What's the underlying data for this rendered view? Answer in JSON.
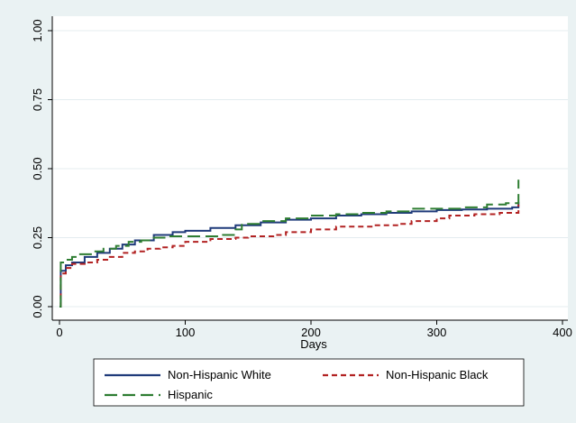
{
  "chart_data": {
    "type": "line",
    "title": "",
    "xlabel": "Days",
    "ylabel": "",
    "xlim": [
      0,
      400
    ],
    "ylim": [
      0,
      1
    ],
    "x_ticks": [
      "0",
      "100",
      "200",
      "300",
      "400"
    ],
    "y_ticks": [
      "0.00",
      "0.25",
      "0.50",
      "0.75",
      "1.00"
    ],
    "grid": true,
    "legend_position": "bottom",
    "series": [
      {
        "name": "Non-Hispanic White",
        "color": "#1f3a7a",
        "dash": "solid",
        "points": [
          [
            0,
            0
          ],
          [
            1,
            0.13
          ],
          [
            5,
            0.15
          ],
          [
            10,
            0.16
          ],
          [
            20,
            0.18
          ],
          [
            30,
            0.195
          ],
          [
            40,
            0.21
          ],
          [
            50,
            0.225
          ],
          [
            60,
            0.24
          ],
          [
            75,
            0.26
          ],
          [
            90,
            0.27
          ],
          [
            100,
            0.275
          ],
          [
            120,
            0.285
          ],
          [
            140,
            0.295
          ],
          [
            160,
            0.305
          ],
          [
            180,
            0.315
          ],
          [
            200,
            0.32
          ],
          [
            220,
            0.33
          ],
          [
            240,
            0.335
          ],
          [
            260,
            0.34
          ],
          [
            280,
            0.345
          ],
          [
            300,
            0.35
          ],
          [
            320,
            0.352
          ],
          [
            340,
            0.355
          ],
          [
            360,
            0.36
          ],
          [
            365,
            0.36
          ],
          [
            365,
            0.38
          ]
        ]
      },
      {
        "name": "Non-Hispanic Black",
        "color": "#b22222",
        "dash": "short",
        "points": [
          [
            0,
            0
          ],
          [
            1,
            0.12
          ],
          [
            5,
            0.14
          ],
          [
            10,
            0.155
          ],
          [
            20,
            0.16
          ],
          [
            30,
            0.17
          ],
          [
            40,
            0.18
          ],
          [
            50,
            0.195
          ],
          [
            60,
            0.2
          ],
          [
            70,
            0.21
          ],
          [
            80,
            0.215
          ],
          [
            90,
            0.22
          ],
          [
            100,
            0.235
          ],
          [
            120,
            0.245
          ],
          [
            140,
            0.25
          ],
          [
            150,
            0.255
          ],
          [
            170,
            0.26
          ],
          [
            180,
            0.27
          ],
          [
            200,
            0.28
          ],
          [
            220,
            0.29
          ],
          [
            250,
            0.295
          ],
          [
            270,
            0.3
          ],
          [
            280,
            0.31
          ],
          [
            300,
            0.32
          ],
          [
            310,
            0.33
          ],
          [
            330,
            0.335
          ],
          [
            350,
            0.34
          ],
          [
            365,
            0.34
          ],
          [
            365,
            0.37
          ]
        ]
      },
      {
        "name": "Hispanic",
        "color": "#2e7d32",
        "dash": "long",
        "points": [
          [
            0,
            0
          ],
          [
            1,
            0.16
          ],
          [
            5,
            0.17
          ],
          [
            10,
            0.18
          ],
          [
            15,
            0.19
          ],
          [
            25,
            0.2
          ],
          [
            35,
            0.21
          ],
          [
            45,
            0.22
          ],
          [
            55,
            0.235
          ],
          [
            65,
            0.24
          ],
          [
            75,
            0.25
          ],
          [
            85,
            0.255
          ],
          [
            100,
            0.255
          ],
          [
            130,
            0.26
          ],
          [
            140,
            0.28
          ],
          [
            145,
            0.3
          ],
          [
            160,
            0.31
          ],
          [
            180,
            0.32
          ],
          [
            200,
            0.33
          ],
          [
            220,
            0.335
          ],
          [
            240,
            0.34
          ],
          [
            260,
            0.345
          ],
          [
            280,
            0.355
          ],
          [
            300,
            0.355
          ],
          [
            320,
            0.36
          ],
          [
            340,
            0.37
          ],
          [
            355,
            0.375
          ],
          [
            365,
            0.38
          ],
          [
            365,
            0.46
          ]
        ]
      }
    ]
  }
}
